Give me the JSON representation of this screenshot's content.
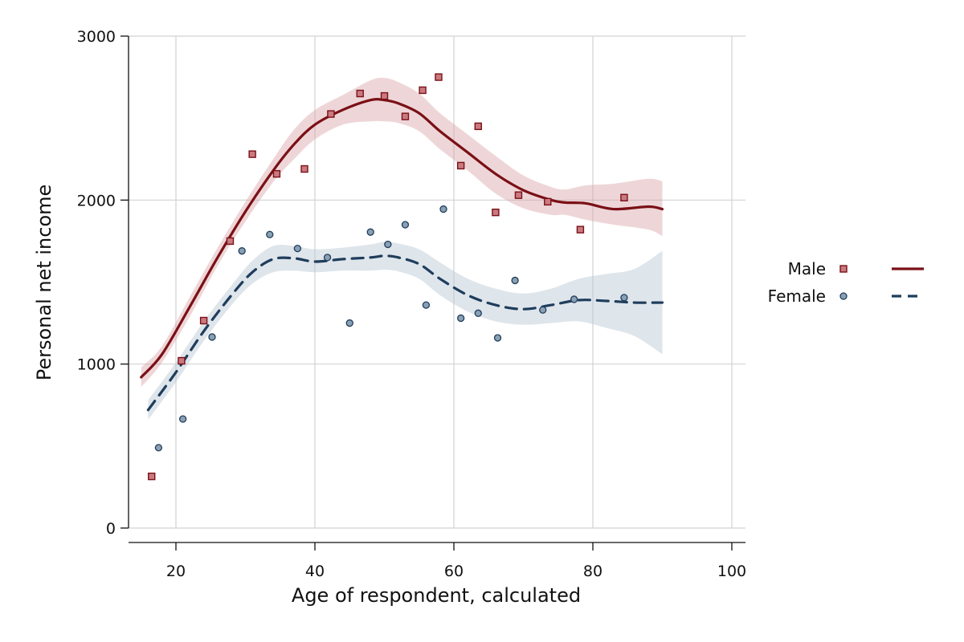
{
  "chart_data": {
    "type": "scatter",
    "title": "",
    "xlabel": "Age of respondent, calculated",
    "ylabel": "Personal net income",
    "xlim": [
      13,
      102
    ],
    "ylim": [
      -80,
      3000
    ],
    "xticks": [
      20,
      40,
      60,
      80,
      100
    ],
    "yticks": [
      0,
      1000,
      2000,
      3000
    ],
    "grid": true,
    "legend_position": "right",
    "series": [
      {
        "name": "Male",
        "color": "#7a1016",
        "marker_fill": "#c97a80",
        "band_color": "#d9a5a8",
        "marker": "square",
        "line_style": "solid",
        "points": {
          "x": [
            16.5,
            20.8,
            24,
            27.8,
            31,
            34.5,
            38.5,
            42.3,
            46.5,
            50,
            53,
            55.5,
            57.8,
            61,
            63.5,
            66,
            69.3,
            73.5,
            78.2,
            84.5
          ],
          "y": [
            315,
            1020,
            1265,
            1750,
            2280,
            2160,
            2190,
            2525,
            2650,
            2635,
            2510,
            2670,
            2750,
            2210,
            2450,
            1925,
            2030,
            1990,
            1820,
            2015
          ]
        },
        "fit": {
          "x": [
            15,
            18,
            22,
            26,
            30,
            34,
            37,
            40,
            44,
            48,
            50,
            52,
            55,
            58,
            62,
            66,
            70,
            74,
            76,
            79,
            83,
            88,
            90
          ],
          "y": [
            920,
            1060,
            1350,
            1650,
            1930,
            2180,
            2340,
            2460,
            2550,
            2610,
            2610,
            2590,
            2530,
            2420,
            2290,
            2160,
            2060,
            2000,
            1985,
            1980,
            1945,
            1960,
            1945
          ]
        },
        "band_lower": [
          860,
          1010,
          1290,
          1600,
          1870,
          2110,
          2250,
          2370,
          2460,
          2480,
          2480,
          2470,
          2420,
          2310,
          2180,
          2040,
          1950,
          1910,
          1910,
          1880,
          1850,
          1820,
          1780
        ],
        "band_upper": [
          980,
          1110,
          1410,
          1710,
          1990,
          2250,
          2430,
          2550,
          2640,
          2730,
          2745,
          2720,
          2650,
          2530,
          2400,
          2270,
          2150,
          2080,
          2065,
          2090,
          2100,
          2130,
          2115
        ]
      },
      {
        "name": "Female",
        "color": "#1f3d5c",
        "marker_fill": "#8aa0b3",
        "band_color": "#b6c5d2",
        "marker": "circle",
        "line_style": "dashed",
        "points": {
          "x": [
            17.5,
            21,
            25.2,
            29.5,
            33.5,
            37.5,
            41.8,
            45,
            48,
            50.5,
            53,
            56,
            58.5,
            61,
            63.5,
            66.3,
            68.8,
            72.8,
            77.3,
            84.5
          ],
          "y": [
            490,
            665,
            1165,
            1690,
            1790,
            1705,
            1650,
            1250,
            1805,
            1730,
            1850,
            1360,
            1945,
            1280,
            1310,
            1160,
            1510,
            1330,
            1395,
            1405
          ]
        },
        "fit": {
          "x": [
            16,
            20,
            24,
            28,
            31,
            34,
            37,
            40,
            44,
            48,
            50,
            52,
            55,
            58,
            62,
            66,
            70,
            74,
            78,
            82,
            86,
            90
          ],
          "y": [
            720,
            950,
            1200,
            1420,
            1560,
            1640,
            1645,
            1625,
            1640,
            1650,
            1660,
            1650,
            1610,
            1520,
            1420,
            1360,
            1335,
            1360,
            1390,
            1385,
            1375,
            1375
          ]
        },
        "band_lower": [
          660,
          890,
          1140,
          1360,
          1490,
          1560,
          1570,
          1560,
          1570,
          1570,
          1575,
          1565,
          1520,
          1420,
          1320,
          1260,
          1240,
          1250,
          1260,
          1220,
          1170,
          1060
        ],
        "band_upper": [
          780,
          1010,
          1260,
          1480,
          1630,
          1720,
          1720,
          1700,
          1710,
          1730,
          1745,
          1735,
          1700,
          1620,
          1520,
          1460,
          1430,
          1460,
          1520,
          1550,
          1580,
          1690
        ]
      }
    ]
  }
}
